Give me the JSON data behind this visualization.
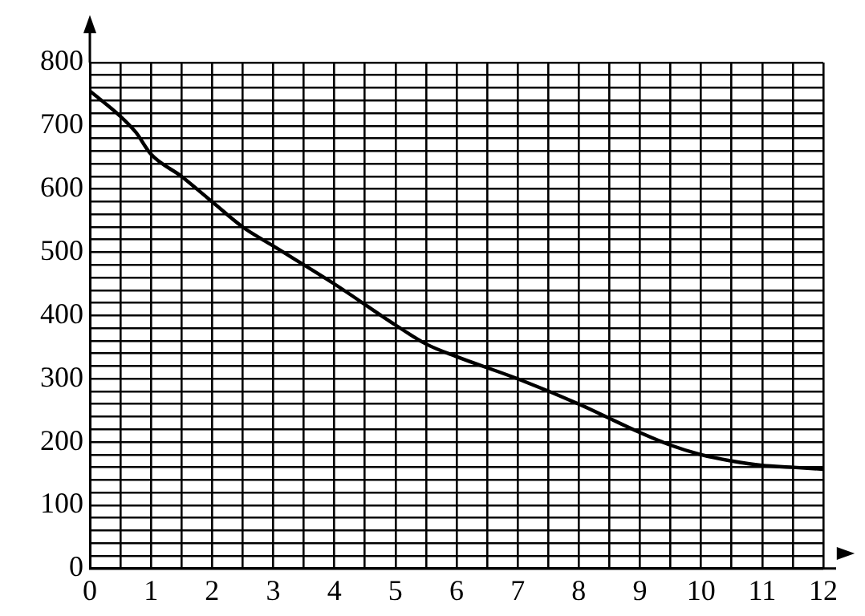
{
  "chart_data": {
    "type": "line",
    "x": [
      0,
      0.5,
      0.75,
      1,
      1.5,
      2,
      2.5,
      3,
      4,
      5,
      5.5,
      6,
      7,
      8,
      9,
      9.5,
      10,
      10.5,
      11,
      11.5,
      12
    ],
    "series": [
      {
        "color": "#000000",
        "values": [
          755,
          715,
          690,
          655,
          620,
          580,
          540,
          510,
          450,
          385,
          355,
          335,
          300,
          260,
          215,
          195,
          180,
          170,
          163,
          160,
          157
        ]
      }
    ],
    "xlim": [
      0,
      12
    ],
    "xticks": [
      0,
      {
        "value": 0.5,
        "label": null
      },
      1,
      {
        "value": 1.5,
        "label": null
      },
      2,
      {
        "value": 2.5,
        "label": null
      },
      3,
      {
        "value": 3.5,
        "label": null
      },
      4,
      {
        "value": 4.5,
        "label": null
      },
      5,
      {
        "value": 5.5,
        "label": null
      },
      6,
      {
        "value": 6.5,
        "label": null
      },
      7,
      {
        "value": 7.5,
        "label": null
      },
      8,
      {
        "value": 8.5,
        "label": null
      },
      9,
      {
        "value": 9.5,
        "label": null
      },
      10,
      {
        "value": 10.5,
        "label": null
      },
      11,
      {
        "value": 11.5,
        "label": null
      },
      12
    ],
    "ylim": [
      0,
      800
    ],
    "yticks": [
      0,
      {
        "value": 20,
        "label": null
      },
      {
        "value": 40,
        "label": null
      },
      {
        "value": 60,
        "label": null
      },
      {
        "value": 80,
        "label": null
      },
      100,
      {
        "value": 120,
        "label": null
      },
      {
        "value": 140,
        "label": null
      },
      {
        "value": 160,
        "label": null
      },
      {
        "value": 180,
        "label": null
      },
      200,
      {
        "value": 220,
        "label": null
      },
      {
        "value": 240,
        "label": null
      },
      {
        "value": 260,
        "label": null
      },
      {
        "value": 280,
        "label": null
      },
      300,
      {
        "value": 320,
        "label": null
      },
      {
        "value": 340,
        "label": null
      },
      {
        "value": 360,
        "label": null
      },
      {
        "value": 380,
        "label": null
      },
      400,
      {
        "value": 420,
        "label": null
      },
      {
        "value": 440,
        "label": null
      },
      {
        "value": 460,
        "label": null
      },
      {
        "value": 480,
        "label": null
      },
      500,
      {
        "value": 520,
        "label": null
      },
      {
        "value": 540,
        "label": null
      },
      {
        "value": 560,
        "label": null
      },
      {
        "value": 580,
        "label": null
      },
      600,
      {
        "value": 620,
        "label": null
      },
      {
        "value": 640,
        "label": null
      },
      {
        "value": 660,
        "label": null
      },
      {
        "value": 680,
        "label": null
      },
      700,
      {
        "value": 720,
        "label": null
      },
      {
        "value": 740,
        "label": null
      },
      {
        "value": 760,
        "label": null
      },
      {
        "value": 780,
        "label": null
      },
      800
    ],
    "grid": true,
    "legend": false,
    "marker": "none",
    "line_style": "solid"
  }
}
